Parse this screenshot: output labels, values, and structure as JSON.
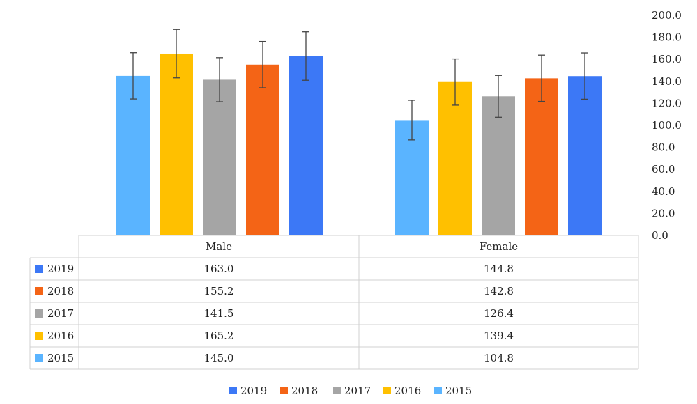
{
  "chart_data": {
    "type": "bar",
    "categories": [
      "Male",
      "Female"
    ],
    "series": [
      {
        "name": "2015",
        "color": "#5AB4FF",
        "values": [
          145.0,
          104.8
        ],
        "error": [
          21,
          18
        ]
      },
      {
        "name": "2016",
        "color": "#FFC000",
        "values": [
          165.2,
          139.4
        ],
        "error": [
          22,
          21
        ]
      },
      {
        "name": "2017",
        "color": "#A5A5A5",
        "values": [
          141.5,
          126.4
        ],
        "error": [
          20,
          19
        ]
      },
      {
        "name": "2018",
        "color": "#F46416",
        "values": [
          155.2,
          142.8
        ],
        "error": [
          21,
          21
        ]
      },
      {
        "name": "2019",
        "color": "#3C78F6",
        "values": [
          163.0,
          144.8
        ],
        "error": [
          22,
          21
        ]
      }
    ],
    "table_order": [
      "2019",
      "2018",
      "2017",
      "2016",
      "2015"
    ],
    "legend_order": [
      "2019",
      "2018",
      "2017",
      "2016",
      "2015"
    ],
    "yticks": [
      "0.0",
      "20.0",
      "40.0",
      "60.0",
      "80.0",
      "100.0",
      "120.0",
      "140.0",
      "160.0",
      "180.0",
      "200.0"
    ],
    "ylim": [
      0,
      200
    ],
    "y_axis_side": "right",
    "grid": false,
    "legend_position": "bottom",
    "data_table": true
  }
}
